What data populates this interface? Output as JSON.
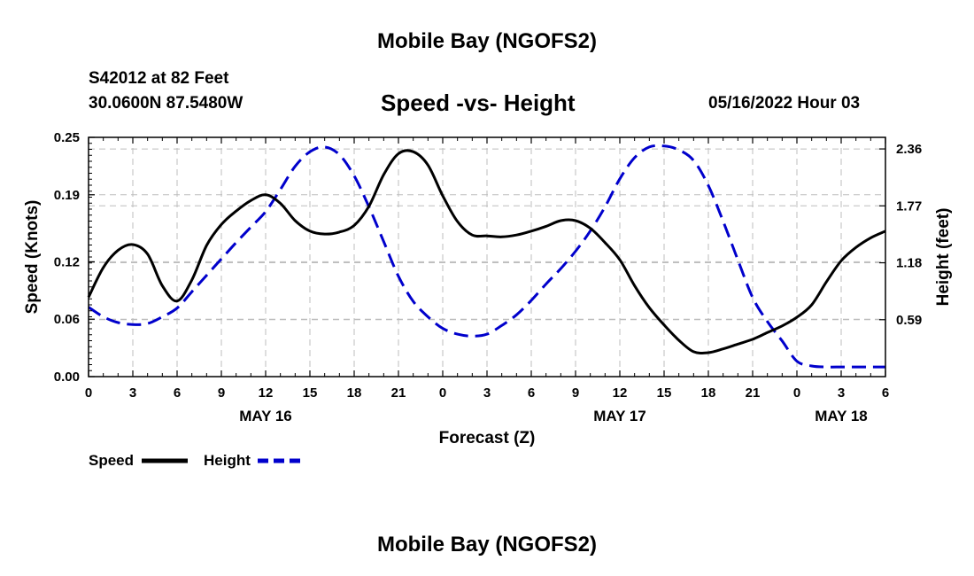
{
  "header": {
    "title": "Mobile Bay (NGOFS2)",
    "station": "S42012 at 82 Feet",
    "coords": "30.0600N  87.5480W",
    "chart_title": "Speed -vs- Height",
    "forecast_time": "05/16/2022 Hour 03"
  },
  "footer": {
    "title": "Mobile Bay (NGOFS2)"
  },
  "colors": {
    "speed": "#000000",
    "height": "#0000cc",
    "grid": "#bdbdbd"
  },
  "chart_data": {
    "type": "line",
    "title": "Speed -vs- Height",
    "xlabel": "Forecast (Z)",
    "ylabel": "Speed (Knots)",
    "y2label": "Height (feet)",
    "ylim": [
      0,
      0.25
    ],
    "y2lim": [
      0.0,
      2.48
    ],
    "xlim": [
      0,
      54
    ],
    "x_ticks": [
      0,
      3,
      6,
      9,
      12,
      15,
      18,
      21,
      24,
      27,
      30,
      33,
      36,
      39,
      42,
      45,
      48,
      51,
      54
    ],
    "x_tick_labels": [
      "0",
      "3",
      "6",
      "9",
      "12",
      "15",
      "18",
      "21",
      "0",
      "3",
      "6",
      "9",
      "12",
      "15",
      "18",
      "21",
      "0",
      "3",
      "6"
    ],
    "date_labels": [
      {
        "x": 12,
        "label": "MAY 16"
      },
      {
        "x": 36,
        "label": "MAY 17"
      },
      {
        "x": 51,
        "label": "MAY 18"
      }
    ],
    "y_ticks": [
      0.0,
      0.06,
      0.12,
      0.19,
      0.25
    ],
    "y_tick_labels": [
      "0.00",
      "0.06",
      "0.12",
      "0.19",
      "0.25"
    ],
    "y2_ticks": [
      0.59,
      1.18,
      1.77,
      2.36
    ],
    "y2_tick_labels": [
      "0.59",
      "1.18",
      "1.77",
      "2.36"
    ],
    "grid": true,
    "legend": {
      "placement": "bottom-left"
    },
    "series": [
      {
        "name": "Speed",
        "axis": "left",
        "style": "solid",
        "x": [
          0,
          1,
          2,
          3,
          4,
          5,
          6,
          7,
          8,
          9,
          10,
          11,
          12,
          13,
          14,
          15,
          16,
          17,
          18,
          19,
          20,
          21,
          22,
          23,
          24,
          25,
          26,
          27,
          28,
          29,
          30,
          31,
          32,
          33,
          34,
          35,
          36,
          37,
          38,
          39,
          40,
          41,
          42,
          43,
          44,
          45,
          46,
          47,
          48,
          49,
          50,
          51,
          52,
          53,
          54
        ],
        "values": [
          0.083,
          0.114,
          0.132,
          0.138,
          0.128,
          0.095,
          0.079,
          0.101,
          0.137,
          0.159,
          0.173,
          0.184,
          0.19,
          0.181,
          0.163,
          0.152,
          0.149,
          0.151,
          0.158,
          0.178,
          0.211,
          0.233,
          0.235,
          0.221,
          0.189,
          0.162,
          0.148,
          0.147,
          0.146,
          0.148,
          0.152,
          0.157,
          0.163,
          0.163,
          0.155,
          0.14,
          0.122,
          0.095,
          0.072,
          0.054,
          0.038,
          0.026,
          0.025,
          0.029,
          0.034,
          0.039,
          0.046,
          0.053,
          0.062,
          0.075,
          0.099,
          0.121,
          0.135,
          0.145,
          0.152
        ]
      },
      {
        "name": "Height",
        "axis": "right",
        "style": "dashed",
        "x": [
          0,
          1,
          2,
          3,
          4,
          5,
          6,
          7,
          8,
          9,
          10,
          11,
          12,
          13,
          14,
          15,
          16,
          17,
          18,
          19,
          20,
          21,
          22,
          23,
          24,
          25,
          26,
          27,
          28,
          29,
          30,
          31,
          32,
          33,
          34,
          35,
          36,
          37,
          38,
          39,
          40,
          41,
          42,
          43,
          44,
          45,
          46,
          47,
          48,
          49,
          50,
          51,
          52,
          53,
          54
        ],
        "values": [
          0.72,
          0.62,
          0.56,
          0.54,
          0.55,
          0.62,
          0.71,
          0.88,
          1.05,
          1.22,
          1.39,
          1.55,
          1.71,
          1.94,
          2.18,
          2.33,
          2.38,
          2.3,
          2.08,
          1.76,
          1.4,
          1.04,
          0.78,
          0.62,
          0.5,
          0.44,
          0.42,
          0.44,
          0.53,
          0.64,
          0.79,
          0.96,
          1.12,
          1.3,
          1.51,
          1.76,
          2.05,
          2.27,
          2.38,
          2.39,
          2.35,
          2.24,
          1.98,
          1.61,
          1.21,
          0.82,
          0.57,
          0.37,
          0.16,
          0.11,
          0.1,
          0.1,
          0.1,
          0.1,
          0.1
        ]
      }
    ]
  }
}
